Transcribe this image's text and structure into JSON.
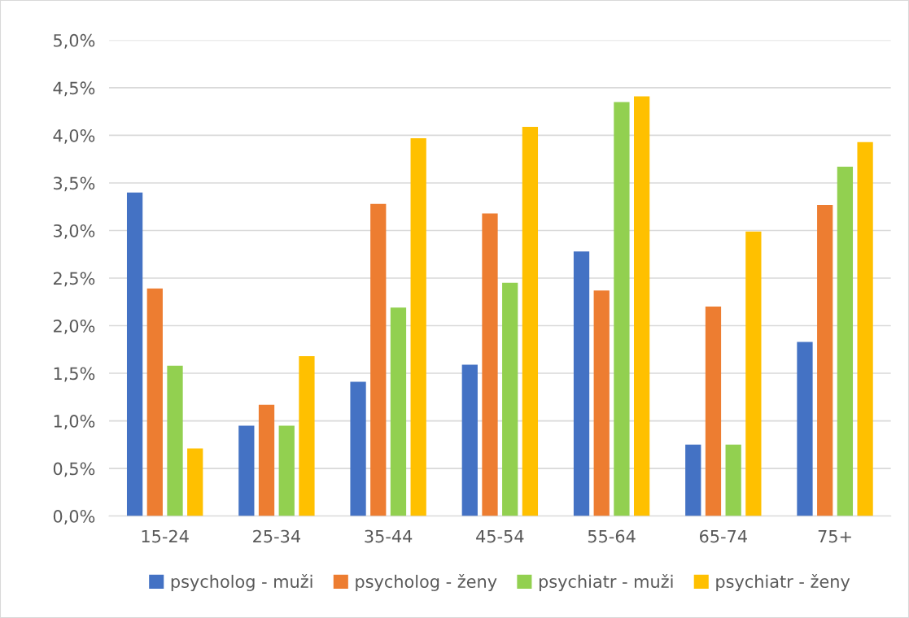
{
  "chart_data": {
    "type": "bar",
    "categories": [
      "15-24",
      "25-34",
      "35-44",
      "45-54",
      "55-64",
      "65-74",
      "75+"
    ],
    "series": [
      {
        "name": "psycholog - muži",
        "color": "#4472c4",
        "values": [
          3.4,
          0.95,
          1.41,
          1.59,
          2.78,
          0.75,
          1.83
        ]
      },
      {
        "name": "psycholog - ženy",
        "color": "#ed7d31",
        "values": [
          2.39,
          1.17,
          3.28,
          3.18,
          2.37,
          2.2,
          3.27
        ]
      },
      {
        "name": "psychiatr - muži",
        "color": "#92d050",
        "values": [
          1.58,
          0.95,
          2.19,
          2.45,
          4.35,
          0.75,
          3.67
        ]
      },
      {
        "name": "psychiatr - ženy",
        "color": "#ffc000",
        "values": [
          0.71,
          1.68,
          3.97,
          4.09,
          4.41,
          2.99,
          3.93
        ]
      }
    ],
    "ylim": [
      0,
      5
    ],
    "yticks": [
      {
        "value": 0,
        "label": "0,0%"
      },
      {
        "value": 0.5,
        "label": "0,5%"
      },
      {
        "value": 1,
        "label": "1,0%"
      },
      {
        "value": 1.5,
        "label": "1,5%"
      },
      {
        "value": 2,
        "label": "2,0%"
      },
      {
        "value": 2.5,
        "label": "2,5%"
      },
      {
        "value": 3,
        "label": "3,0%"
      },
      {
        "value": 3.5,
        "label": "3,5%"
      },
      {
        "value": 4,
        "label": "4,0%"
      },
      {
        "value": 4.5,
        "label": "4,5%"
      },
      {
        "value": 5,
        "label": "5,0%"
      }
    ],
    "grid": "y",
    "legend": "bottom"
  }
}
